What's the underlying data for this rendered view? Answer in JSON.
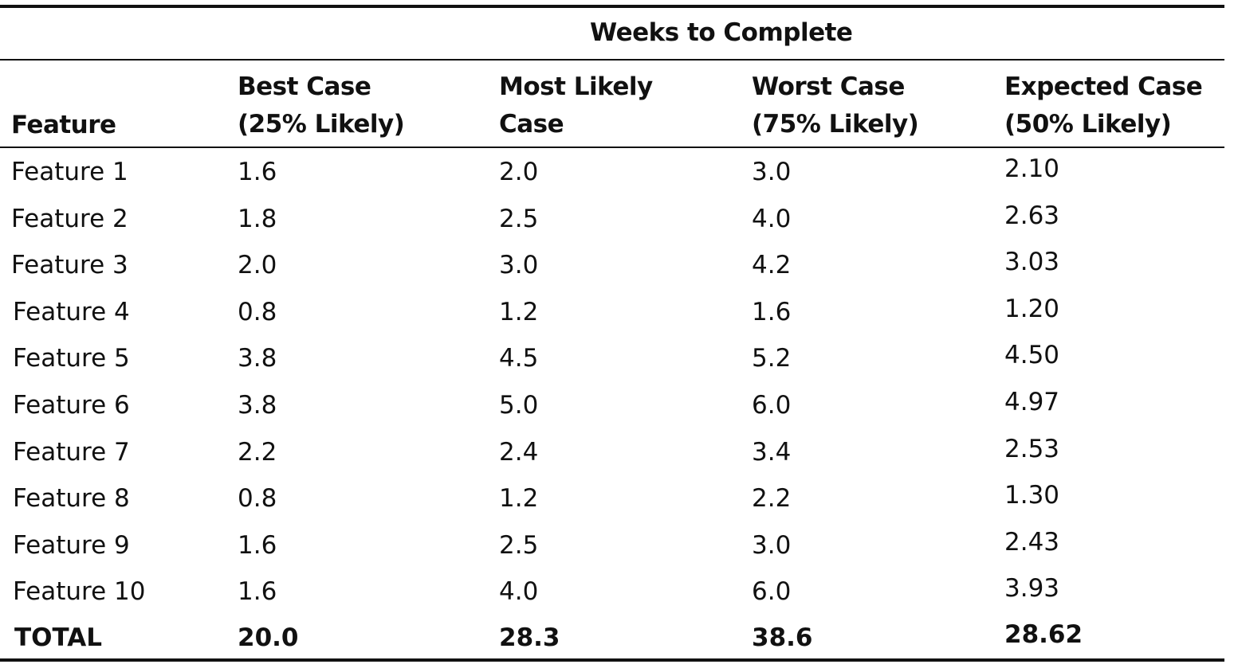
{
  "table": {
    "group_header": "Weeks to Complete",
    "columns": [
      [
        "Feature"
      ],
      [
        "Best Case",
        "(25% Likely)"
      ],
      [
        "Most Likely",
        "Case"
      ],
      [
        "Worst Case",
        "(75% Likely)"
      ],
      [
        "Expected Case",
        "(50% Likely)"
      ]
    ],
    "rows": [
      [
        "Feature 1",
        "1.6",
        "2.0",
        "3.0",
        "2.10"
      ],
      [
        "Feature 2",
        "1.8",
        "2.5",
        "4.0",
        "2.63"
      ],
      [
        "Feature 3",
        "2.0",
        "3.0",
        "4.2",
        "3.03"
      ],
      [
        "Feature 4",
        "0.8",
        "1.2",
        "1.6",
        "1.20"
      ],
      [
        "Feature 5",
        "3.8",
        "4.5",
        "5.2",
        "4.50"
      ],
      [
        "Feature 6",
        "3.8",
        "5.0",
        "6.0",
        "4.97"
      ],
      [
        "Feature 7",
        "2.2",
        "2.4",
        "3.4",
        "2.53"
      ],
      [
        "Feature 8",
        "0.8",
        "1.2",
        "2.2",
        "1.30"
      ],
      [
        "Feature 9",
        "1.6",
        "2.5",
        "3.0",
        "2.43"
      ],
      [
        "Feature 10",
        "1.6",
        "4.0",
        "6.0",
        "3.93"
      ]
    ],
    "total": [
      "TOTAL",
      "20.0",
      "28.3",
      "38.6",
      "28.62"
    ]
  }
}
